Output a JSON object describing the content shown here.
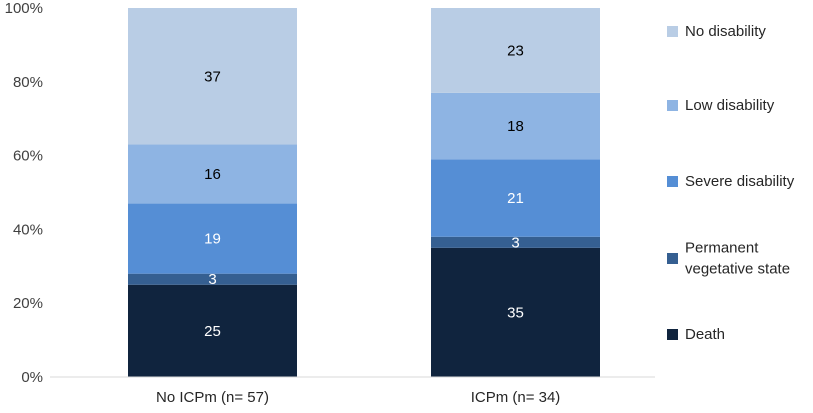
{
  "chart_data": {
    "type": "bar",
    "stacked": true,
    "percent_stacked": true,
    "categories": [
      "No ICPm (n= 57)",
      "ICPm (n= 34)"
    ],
    "series": [
      {
        "name": "Death",
        "values": [
          25,
          35
        ],
        "color": "#10243e",
        "label_color": "#ffffff"
      },
      {
        "name": "Permanent vegetative state",
        "values": [
          3,
          3
        ],
        "color": "#355f91",
        "label_color": "#ffffff"
      },
      {
        "name": "Severe disability",
        "values": [
          19,
          21
        ],
        "color": "#558ed5",
        "label_color": "#ffffff"
      },
      {
        "name": "Low disability",
        "values": [
          16,
          18
        ],
        "color": "#8eb4e3",
        "label_color": "#000000"
      },
      {
        "name": "No disability",
        "values": [
          37,
          23
        ],
        "color": "#b9cde5",
        "label_color": "#000000"
      }
    ],
    "legend_labels": [
      {
        "series": "No disability",
        "lines": [
          "No disability"
        ]
      },
      {
        "series": "Low disability",
        "lines": [
          "Low disability"
        ]
      },
      {
        "series": "Severe disability",
        "lines": [
          "Severe disability"
        ]
      },
      {
        "series": "Permanent vegetative state",
        "lines": [
          "Permanent",
          "vegetative state"
        ]
      },
      {
        "series": "Death",
        "lines": [
          "Death"
        ]
      }
    ],
    "y_ticks": [
      "0%",
      "20%",
      "40%",
      "60%",
      "80%",
      "100%"
    ],
    "ylim": [
      0,
      100
    ],
    "legend_position": "right",
    "grid": false,
    "title": "",
    "xlabel": "",
    "ylabel": ""
  }
}
